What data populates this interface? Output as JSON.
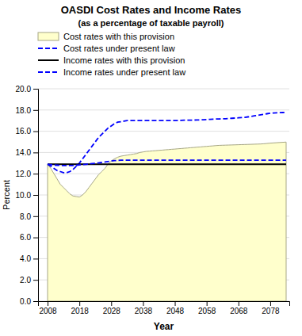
{
  "chart_data": {
    "type": "line",
    "title": "OASDI Cost Rates and Income Rates",
    "subtitle": "(as a percentage of taxable payroll)",
    "xlabel": "Year",
    "ylabel": "Percent",
    "xlim": [
      2005,
      2084
    ],
    "xticks": [
      2008,
      2018,
      2028,
      2038,
      2048,
      2058,
      2068,
      2078
    ],
    "ylim": [
      0,
      20
    ],
    "yticks": [
      {
        "value": 0,
        "label": "0.0"
      },
      {
        "value": 2,
        "label": "2.0"
      },
      {
        "value": 4,
        "label": "4.0"
      },
      {
        "value": 6,
        "label": "6.0"
      },
      {
        "value": 8,
        "label": "8.0"
      },
      {
        "value": 10,
        "label": "10.0"
      },
      {
        "value": 12,
        "label": "12.0"
      },
      {
        "value": 14,
        "label": "14.0"
      },
      {
        "value": 16,
        "label": "16.0"
      },
      {
        "value": 18,
        "label": "18.0"
      },
      {
        "value": 20,
        "label": "20.0"
      }
    ],
    "grid": "y",
    "legend": "top",
    "x": [
      2008,
      2009,
      2010,
      2011,
      2012,
      2013,
      2014,
      2015,
      2016,
      2017,
      2018,
      2019,
      2020,
      2021,
      2022,
      2023,
      2024,
      2025,
      2026,
      2027,
      2028,
      2029,
      2030,
      2031,
      2032,
      2033,
      2034,
      2035,
      2036,
      2037,
      2038,
      2039,
      2040,
      2041,
      2042,
      2043,
      2044,
      2045,
      2046,
      2047,
      2048,
      2049,
      2050,
      2051,
      2052,
      2053,
      2054,
      2055,
      2056,
      2057,
      2058,
      2059,
      2060,
      2061,
      2062,
      2063,
      2064,
      2065,
      2066,
      2067,
      2068,
      2069,
      2070,
      2071,
      2072,
      2073,
      2074,
      2075,
      2076,
      2077,
      2078,
      2079,
      2080,
      2081,
      2082,
      2083
    ],
    "series": [
      {
        "name": "Cost rates with this provision",
        "type": "area",
        "color": "#ffffcc",
        "line_style": "solid",
        "values": [
          12.9,
          12.5,
          12.0,
          11.5,
          11.0,
          10.7,
          10.4,
          10.1,
          9.9,
          9.85,
          9.8,
          10.0,
          10.3,
          10.7,
          11.1,
          11.5,
          11.9,
          12.2,
          12.5,
          12.9,
          13.2,
          13.4,
          13.55,
          13.65,
          13.7,
          13.75,
          13.8,
          13.85,
          13.9,
          14.0,
          14.05,
          14.1,
          14.12,
          14.15,
          14.17,
          14.2,
          14.22,
          14.25,
          14.27,
          14.3,
          14.32,
          14.35,
          14.37,
          14.4,
          14.42,
          14.45,
          14.47,
          14.5,
          14.52,
          14.55,
          14.57,
          14.6,
          14.62,
          14.65,
          14.67,
          14.68,
          14.69,
          14.7,
          14.71,
          14.72,
          14.73,
          14.74,
          14.75,
          14.76,
          14.77,
          14.78,
          14.79,
          14.8,
          14.82,
          14.85,
          14.88,
          14.9,
          14.92,
          14.94,
          14.96,
          14.98
        ]
      },
      {
        "name": "Cost rates under present law",
        "type": "line",
        "color": "#0000ff",
        "line_style": "dashed",
        "values": [
          12.9,
          12.7,
          12.5,
          12.3,
          12.2,
          12.1,
          12.1,
          12.2,
          12.4,
          12.7,
          13.0,
          13.4,
          13.8,
          14.2,
          14.6,
          15.0,
          15.4,
          15.7,
          16.0,
          16.3,
          16.5,
          16.7,
          16.85,
          16.9,
          16.95,
          17.0,
          17.0,
          17.0,
          17.0,
          17.0,
          17.0,
          17.0,
          17.0,
          17.0,
          17.0,
          17.0,
          17.0,
          17.0,
          17.0,
          17.0,
          17.0,
          17.0,
          17.02,
          17.04,
          17.05,
          17.05,
          17.05,
          17.06,
          17.07,
          17.08,
          17.1,
          17.12,
          17.14,
          17.15,
          17.16,
          17.17,
          17.18,
          17.2,
          17.22,
          17.24,
          17.26,
          17.28,
          17.3,
          17.35,
          17.4,
          17.45,
          17.5,
          17.55,
          17.6,
          17.65,
          17.7,
          17.72,
          17.74,
          17.75,
          17.76,
          17.77
        ]
      },
      {
        "name": "Income rates with this provision",
        "type": "line",
        "color": "#000000",
        "line_style": "solid",
        "values": [
          12.9,
          12.9,
          12.9,
          12.9,
          12.9,
          12.9,
          12.9,
          12.9,
          12.9,
          12.9,
          12.9,
          12.9,
          12.9,
          12.9,
          12.9,
          12.9,
          12.9,
          12.9,
          12.9,
          12.9,
          12.9,
          12.9,
          12.9,
          12.9,
          12.9,
          12.9,
          12.9,
          12.9,
          12.9,
          12.9,
          12.9,
          12.9,
          12.9,
          12.9,
          12.9,
          12.9,
          12.9,
          12.9,
          12.9,
          12.9,
          12.9,
          12.9,
          12.9,
          12.9,
          12.9,
          12.9,
          12.9,
          12.9,
          12.9,
          12.9,
          12.9,
          12.9,
          12.9,
          12.9,
          12.9,
          12.9,
          12.9,
          12.9,
          12.9,
          12.9,
          12.9,
          12.9,
          12.9,
          12.9,
          12.9,
          12.9,
          12.9,
          12.9,
          12.9,
          12.9,
          12.9,
          12.9,
          12.9,
          12.9,
          12.9,
          12.9
        ]
      },
      {
        "name": "Income rates under present law",
        "type": "line",
        "color": "#0000ff",
        "line_style": "dashed",
        "values": [
          12.9,
          12.85,
          12.82,
          12.8,
          12.78,
          12.77,
          12.77,
          12.77,
          12.78,
          12.8,
          12.83,
          12.86,
          12.89,
          12.92,
          12.95,
          12.98,
          13.02,
          13.06,
          13.1,
          13.15,
          13.2,
          13.23,
          13.25,
          13.27,
          13.28,
          13.28,
          13.28,
          13.28,
          13.28,
          13.28,
          13.28,
          13.28,
          13.28,
          13.28,
          13.28,
          13.28,
          13.28,
          13.28,
          13.28,
          13.28,
          13.28,
          13.28,
          13.28,
          13.28,
          13.28,
          13.28,
          13.28,
          13.28,
          13.28,
          13.28,
          13.28,
          13.28,
          13.28,
          13.28,
          13.28,
          13.28,
          13.28,
          13.28,
          13.28,
          13.28,
          13.28,
          13.28,
          13.28,
          13.28,
          13.28,
          13.28,
          13.28,
          13.28,
          13.28,
          13.28,
          13.28,
          13.28,
          13.28,
          13.28,
          13.28,
          13.28
        ]
      }
    ]
  }
}
